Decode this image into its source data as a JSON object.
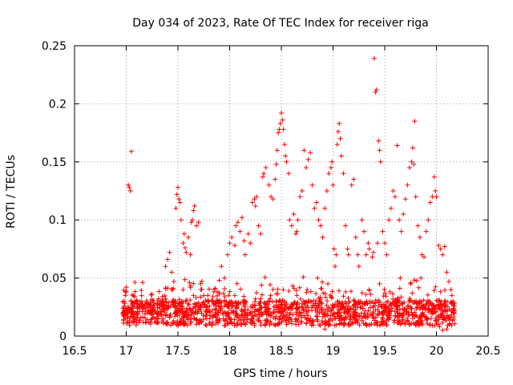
{
  "chart_data": {
    "type": "scatter",
    "title": "Day 034 of 2023, Rate Of TEC Index for receiver riga",
    "xlabel": "GPS time / hours",
    "ylabel": "ROTI / TECUs",
    "xlim": [
      16.5,
      20.5
    ],
    "ylim": [
      0,
      0.25
    ],
    "xticks": [
      16.5,
      17,
      17.5,
      18,
      18.5,
      19,
      19.5,
      20,
      20.5
    ],
    "xtick_labels": [
      "16.5",
      "17",
      "17.5",
      "18",
      "18.5",
      "19",
      "19.5",
      "20",
      "20.5"
    ],
    "yticks": [
      0,
      0.05,
      0.1,
      0.15,
      0.2,
      0.25
    ],
    "ytick_labels": [
      "0",
      "0.05",
      "0.1",
      "0.15",
      "0.2",
      "0.25"
    ],
    "grid": true,
    "marker": "+",
    "color": "#ff0000",
    "series": [
      {
        "points": [
          [
            16.97,
            0.018
          ],
          [
            16.98,
            0.03
          ],
          [
            16.99,
            0.035
          ],
          [
            17.0,
            0.042
          ],
          [
            17.0,
            0.038
          ],
          [
            17.01,
            0.015
          ],
          [
            17.02,
            0.13
          ],
          [
            17.03,
            0.128
          ],
          [
            17.04,
            0.125
          ],
          [
            17.05,
            0.159
          ],
          [
            17.05,
            0.022
          ],
          [
            17.08,
            0.028
          ],
          [
            17.1,
            0.012
          ],
          [
            17.15,
            0.03
          ],
          [
            17.2,
            0.025
          ],
          [
            17.25,
            0.036
          ],
          [
            17.3,
            0.028
          ],
          [
            17.35,
            0.034
          ],
          [
            17.38,
            0.06
          ],
          [
            17.4,
            0.066
          ],
          [
            17.42,
            0.072
          ],
          [
            17.44,
            0.055
          ],
          [
            17.45,
            0.04
          ],
          [
            17.46,
            0.047
          ],
          [
            17.48,
            0.11
          ],
          [
            17.49,
            0.122
          ],
          [
            17.5,
            0.128
          ],
          [
            17.51,
            0.118
          ],
          [
            17.52,
            0.115
          ],
          [
            17.53,
            0.1
          ],
          [
            17.55,
            0.08
          ],
          [
            17.56,
            0.088
          ],
          [
            17.57,
            0.076
          ],
          [
            17.58,
            0.072
          ],
          [
            17.6,
            0.085
          ],
          [
            17.62,
            0.07
          ],
          [
            17.63,
            0.098
          ],
          [
            17.64,
            0.1
          ],
          [
            17.65,
            0.108
          ],
          [
            17.66,
            0.112
          ],
          [
            17.68,
            0.095
          ],
          [
            17.7,
            0.098
          ],
          [
            17.72,
            0.045
          ],
          [
            17.75,
            0.035
          ],
          [
            17.8,
            0.03
          ],
          [
            17.85,
            0.04
          ],
          [
            17.88,
            0.038
          ],
          [
            17.9,
            0.048
          ],
          [
            17.92,
            0.06
          ],
          [
            17.95,
            0.05
          ],
          [
            17.98,
            0.07
          ],
          [
            18.0,
            0.08
          ],
          [
            18.02,
            0.085
          ],
          [
            18.05,
            0.078
          ],
          [
            18.06,
            0.095
          ],
          [
            18.08,
            0.098
          ],
          [
            18.1,
            0.09
          ],
          [
            18.12,
            0.102
          ],
          [
            18.14,
            0.082
          ],
          [
            18.15,
            0.07
          ],
          [
            18.18,
            0.088
          ],
          [
            18.2,
            0.08
          ],
          [
            18.22,
            0.115
          ],
          [
            18.24,
            0.118
          ],
          [
            18.25,
            0.112
          ],
          [
            18.26,
            0.12
          ],
          [
            18.28,
            0.095
          ],
          [
            18.3,
            0.088
          ],
          [
            18.32,
            0.137
          ],
          [
            18.33,
            0.14
          ],
          [
            18.35,
            0.145
          ],
          [
            18.38,
            0.13
          ],
          [
            18.4,
            0.12
          ],
          [
            18.42,
            0.118
          ],
          [
            18.44,
            0.135
          ],
          [
            18.45,
            0.148
          ],
          [
            18.46,
            0.16
          ],
          [
            18.47,
            0.175
          ],
          [
            18.48,
            0.178
          ],
          [
            18.49,
            0.183
          ],
          [
            18.5,
            0.192
          ],
          [
            18.51,
            0.186
          ],
          [
            18.52,
            0.178
          ],
          [
            18.53,
            0.165
          ],
          [
            18.54,
            0.155
          ],
          [
            18.55,
            0.15
          ],
          [
            18.57,
            0.14
          ],
          [
            18.58,
            0.1
          ],
          [
            18.6,
            0.095
          ],
          [
            18.62,
            0.105
          ],
          [
            18.64,
            0.088
          ],
          [
            18.65,
            0.09
          ],
          [
            18.66,
            0.1
          ],
          [
            18.68,
            0.12
          ],
          [
            18.7,
            0.125
          ],
          [
            18.72,
            0.16
          ],
          [
            18.74,
            0.145
          ],
          [
            18.76,
            0.152
          ],
          [
            18.78,
            0.158
          ],
          [
            18.8,
            0.13
          ],
          [
            18.82,
            0.11
          ],
          [
            18.84,
            0.115
          ],
          [
            18.86,
            0.1
          ],
          [
            18.88,
            0.095
          ],
          [
            18.9,
            0.085
          ],
          [
            18.92,
            0.11
          ],
          [
            18.94,
            0.125
          ],
          [
            18.96,
            0.14
          ],
          [
            18.98,
            0.145
          ],
          [
            18.99,
            0.15
          ],
          [
            19.0,
            0.13
          ],
          [
            19.01,
            0.075
          ],
          [
            19.02,
            0.06
          ],
          [
            19.03,
            0.07
          ],
          [
            19.04,
            0.165
          ],
          [
            19.05,
            0.176
          ],
          [
            19.06,
            0.183
          ],
          [
            19.07,
            0.17
          ],
          [
            19.08,
            0.155
          ],
          [
            19.1,
            0.14
          ],
          [
            19.12,
            0.095
          ],
          [
            19.14,
            0.075
          ],
          [
            19.15,
            0.07
          ],
          [
            19.18,
            0.13
          ],
          [
            19.2,
            0.135
          ],
          [
            19.22,
            0.085
          ],
          [
            19.24,
            0.07
          ],
          [
            19.25,
            0.06
          ],
          [
            19.28,
            0.1
          ],
          [
            19.3,
            0.09
          ],
          [
            19.32,
            0.07
          ],
          [
            19.34,
            0.08
          ],
          [
            19.35,
            0.075
          ],
          [
            19.38,
            0.068
          ],
          [
            19.39,
            0.072
          ],
          [
            19.4,
            0.239
          ],
          [
            19.41,
            0.21
          ],
          [
            19.42,
            0.212
          ],
          [
            19.43,
            0.08
          ],
          [
            19.44,
            0.168
          ],
          [
            19.45,
            0.16
          ],
          [
            19.46,
            0.15
          ],
          [
            19.48,
            0.09
          ],
          [
            19.5,
            0.08
          ],
          [
            19.52,
            0.07
          ],
          [
            19.54,
            0.1
          ],
          [
            19.56,
            0.11
          ],
          [
            19.58,
            0.125
          ],
          [
            19.6,
            0.12
          ],
          [
            19.62,
            0.164
          ],
          [
            19.64,
            0.1
          ],
          [
            19.66,
            0.09
          ],
          [
            19.68,
            0.105
          ],
          [
            19.7,
            0.118
          ],
          [
            19.72,
            0.13
          ],
          [
            19.74,
            0.145
          ],
          [
            19.76,
            0.15
          ],
          [
            19.77,
            0.162
          ],
          [
            19.78,
            0.148
          ],
          [
            19.79,
            0.185
          ],
          [
            19.8,
            0.12
          ],
          [
            19.82,
            0.095
          ],
          [
            19.84,
            0.085
          ],
          [
            19.86,
            0.07
          ],
          [
            19.88,
            0.068
          ],
          [
            19.9,
            0.09
          ],
          [
            19.92,
            0.1
          ],
          [
            19.94,
            0.115
          ],
          [
            19.96,
            0.12
          ],
          [
            19.98,
            0.137
          ],
          [
            19.99,
            0.125
          ],
          [
            20.0,
            0.12
          ],
          [
            20.02,
            0.078
          ],
          [
            20.04,
            0.075
          ],
          [
            20.06,
            0.07
          ],
          [
            20.08,
            0.077
          ],
          [
            20.1,
            0.055
          ],
          [
            20.12,
            0.047
          ],
          [
            20.14,
            0.04
          ],
          [
            20.15,
            0.035
          ],
          [
            20.16,
            0.03
          ],
          [
            20.03,
            0.008
          ],
          [
            20.06,
            0.005
          ],
          [
            20.1,
            0.006
          ],
          [
            18.92,
            0.006
          ],
          [
            18.55,
            0.01
          ],
          [
            19.25,
            0.03
          ],
          [
            19.35,
            0.04
          ],
          [
            19.45,
            0.045
          ],
          [
            19.55,
            0.038
          ],
          [
            19.65,
            0.05
          ],
          [
            19.75,
            0.045
          ],
          [
            19.85,
            0.05
          ],
          [
            18.95,
            0.045
          ],
          [
            18.85,
            0.05
          ],
          [
            18.75,
            0.04
          ],
          [
            18.65,
            0.035
          ],
          [
            18.45,
            0.03
          ],
          [
            18.35,
            0.028
          ],
          [
            18.25,
            0.032
          ],
          [
            18.15,
            0.03
          ],
          [
            18.05,
            0.035
          ],
          [
            17.95,
            0.03
          ],
          [
            17.85,
            0.028
          ],
          [
            17.75,
            0.025
          ],
          [
            17.65,
            0.035
          ],
          [
            17.55,
            0.04
          ],
          [
            17.45,
            0.03
          ],
          [
            17.35,
            0.025
          ],
          [
            17.25,
            0.022
          ]
        ]
      }
    ]
  }
}
